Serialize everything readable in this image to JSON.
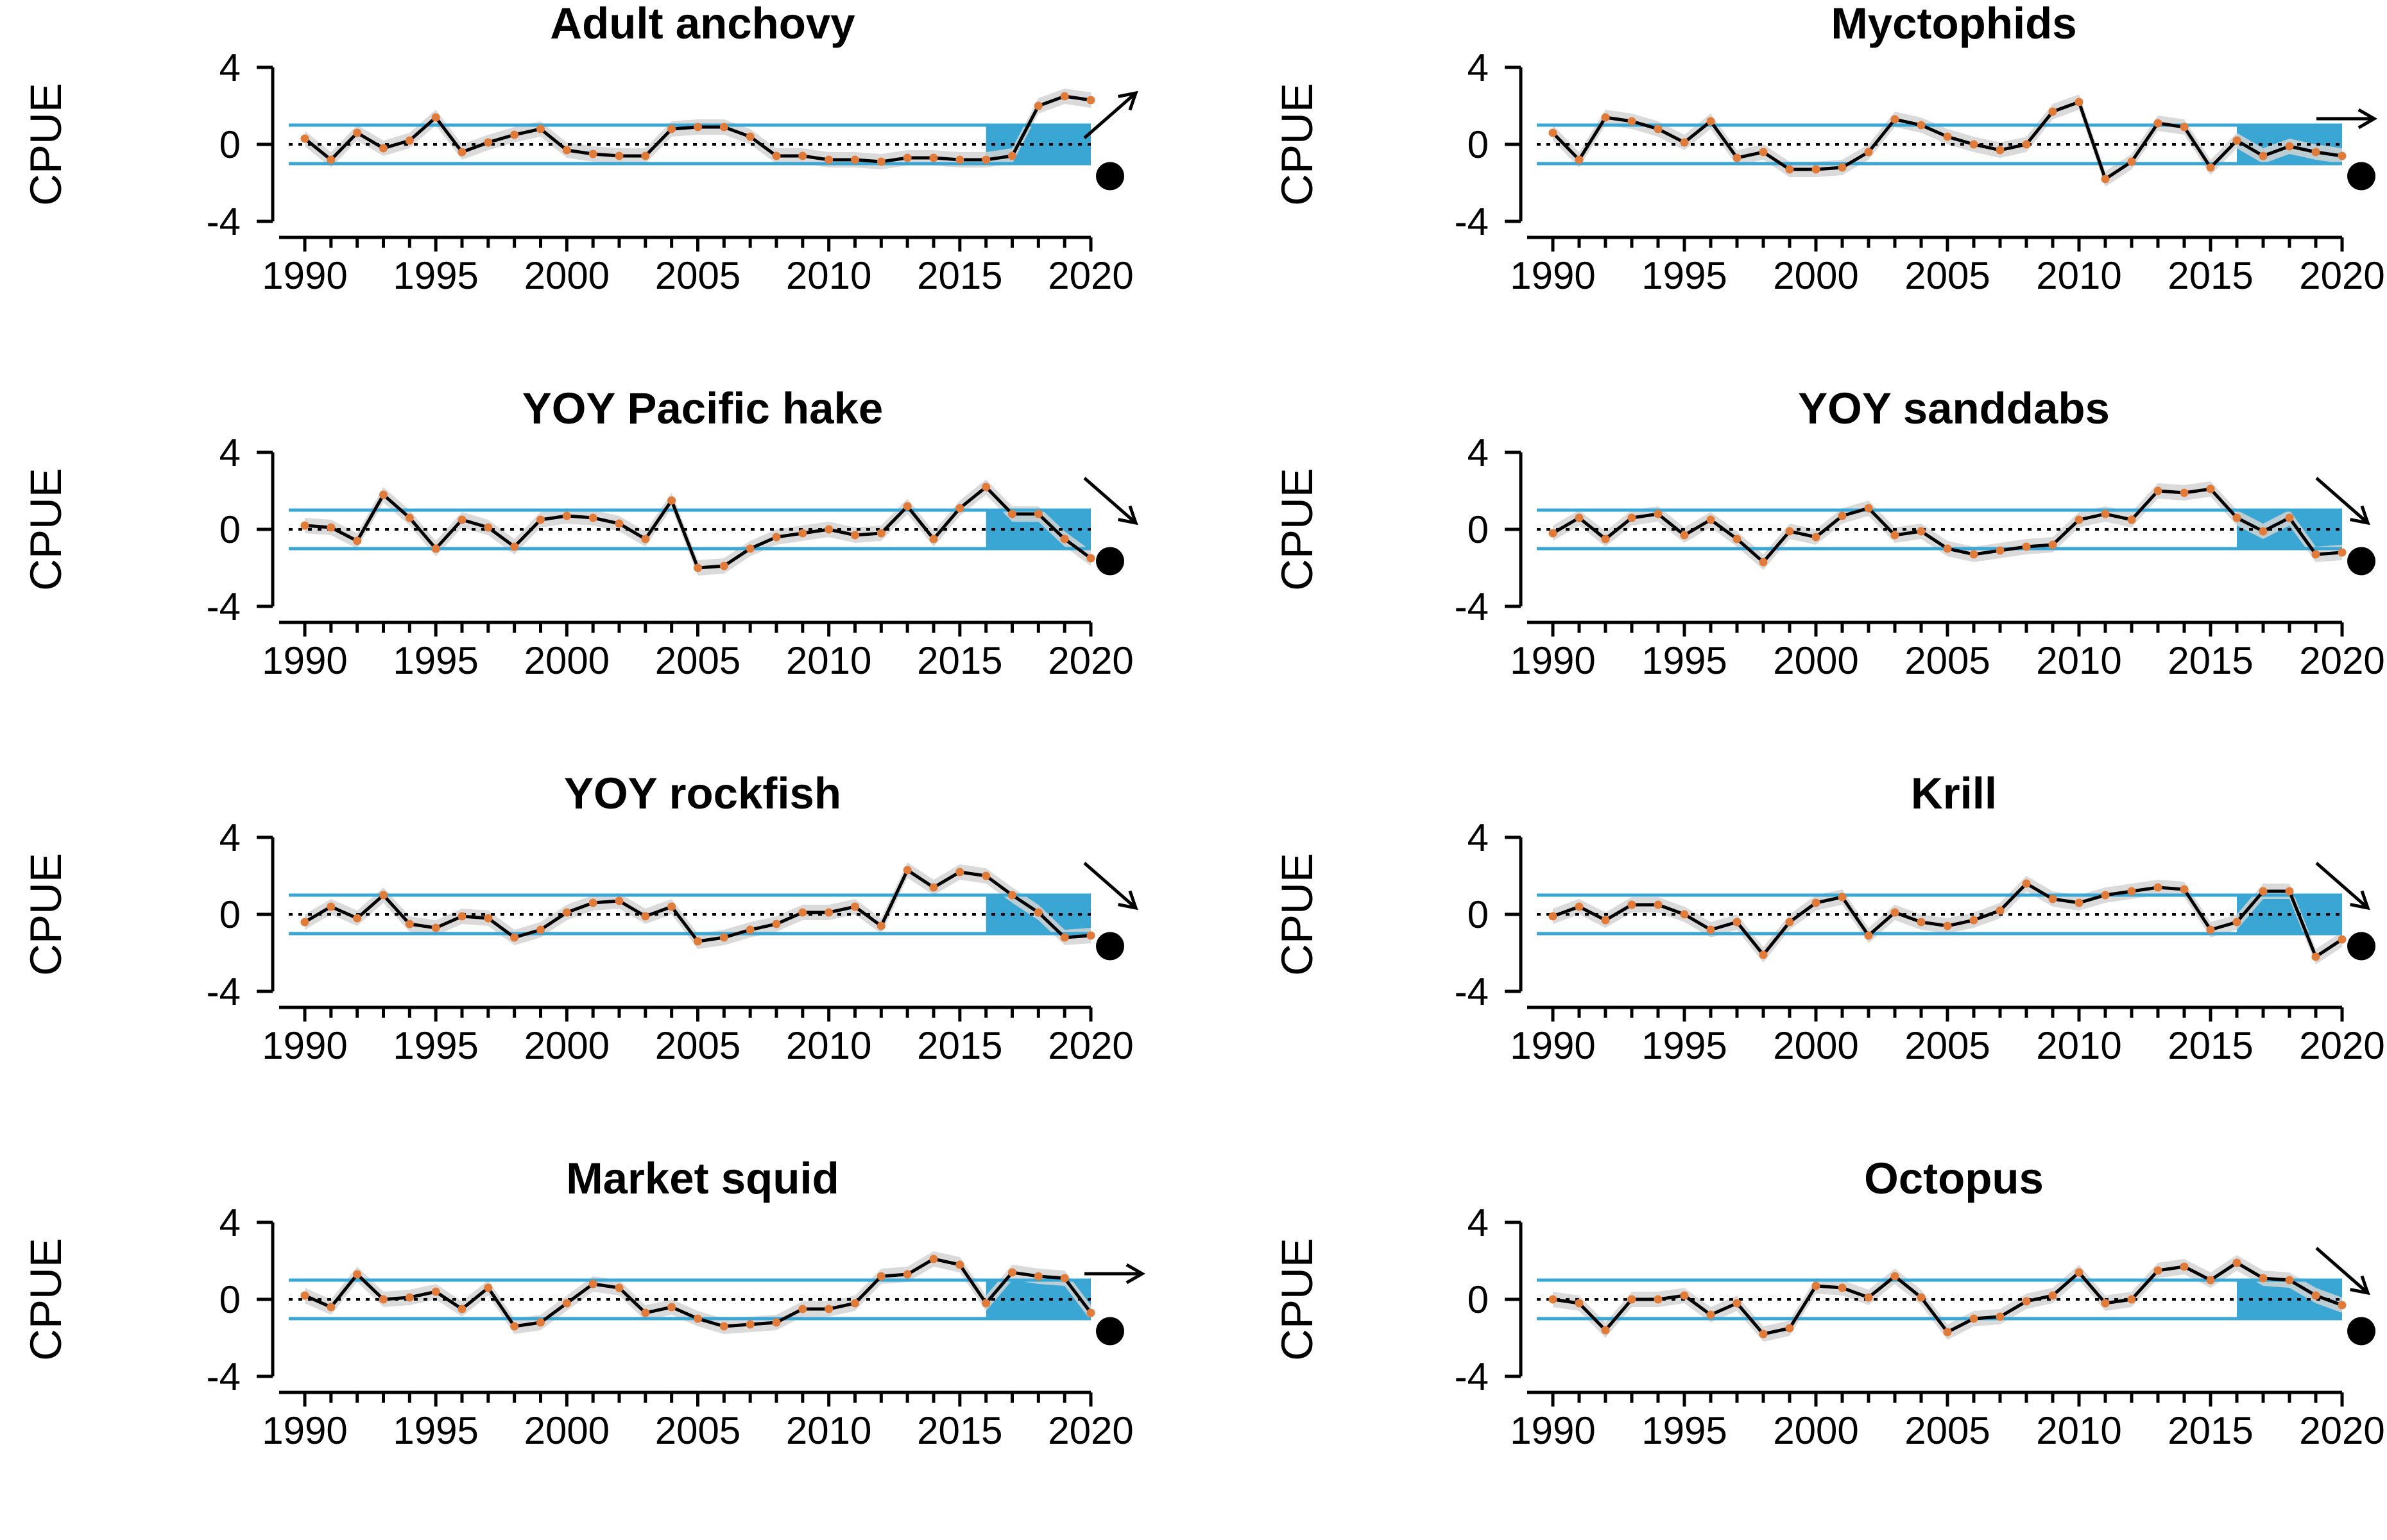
{
  "figure": {
    "y_axis_label": "CPUE",
    "colors": {
      "line": "#000000",
      "point": "#E07B39",
      "band": "#D3D3D3",
      "sd_line": "#3AA6D4",
      "recent_fill": "#3AA6D4",
      "mean_line": "#000000"
    }
  },
  "chart_data": [
    {
      "type": "line",
      "title": "Adult anchovy",
      "ylabel": "CPUE",
      "xlim": [
        1990,
        2020
      ],
      "ylim": [
        -4,
        4
      ],
      "y_ticks": [
        "4",
        "0",
        "-4"
      ],
      "x_ticks": [
        "1990",
        "1995",
        "2000",
        "2005",
        "2010",
        "2015",
        "2020"
      ],
      "recent_window": [
        2016,
        2020
      ],
      "sd_lines": [
        1,
        -1
      ],
      "trend": "increasing",
      "status": "within",
      "x": [
        1990,
        1991,
        1992,
        1993,
        1994,
        1995,
        1996,
        1997,
        1998,
        1999,
        2000,
        2001,
        2002,
        2003,
        2004,
        2005,
        2006,
        2007,
        2008,
        2009,
        2010,
        2011,
        2012,
        2013,
        2014,
        2015,
        2016,
        2017,
        2018,
        2019,
        2020
      ],
      "values": [
        0.3,
        -0.8,
        0.6,
        -0.2,
        0.2,
        1.4,
        -0.4,
        0.1,
        0.5,
        0.8,
        -0.3,
        -0.5,
        -0.6,
        -0.6,
        0.8,
        0.9,
        0.9,
        0.4,
        -0.6,
        -0.6,
        -0.8,
        -0.8,
        -0.9,
        -0.7,
        -0.7,
        -0.8,
        -0.8,
        -0.6,
        2.0,
        2.5,
        2.3
      ]
    },
    {
      "type": "line",
      "title": "Myctophids",
      "ylabel": "CPUE",
      "xlim": [
        1990,
        2020
      ],
      "ylim": [
        -4,
        4
      ],
      "y_ticks": [
        "4",
        "0",
        "-4"
      ],
      "x_ticks": [
        "1990",
        "1995",
        "2000",
        "2005",
        "2010",
        "2015",
        "2020"
      ],
      "recent_window": [
        2016,
        2020
      ],
      "sd_lines": [
        1,
        -1
      ],
      "trend": "stable",
      "status": "within",
      "x": [
        1990,
        1991,
        1992,
        1993,
        1994,
        1995,
        1996,
        1997,
        1998,
        1999,
        2000,
        2001,
        2002,
        2003,
        2004,
        2005,
        2006,
        2007,
        2008,
        2009,
        2010,
        2011,
        2012,
        2013,
        2014,
        2015,
        2016,
        2017,
        2018,
        2019,
        2020
      ],
      "values": [
        0.6,
        -0.8,
        1.4,
        1.2,
        0.8,
        0.1,
        1.2,
        -0.7,
        -0.4,
        -1.3,
        -1.3,
        -1.2,
        -0.4,
        1.3,
        1.0,
        0.4,
        0.0,
        -0.3,
        0.0,
        1.7,
        2.2,
        -1.8,
        -0.9,
        1.1,
        0.9,
        -1.2,
        0.2,
        -0.6,
        -0.1,
        -0.4,
        -0.6
      ]
    },
    {
      "type": "line",
      "title": "YOY Pacific hake",
      "ylabel": "CPUE",
      "xlim": [
        1990,
        2020
      ],
      "ylim": [
        -4,
        4
      ],
      "y_ticks": [
        "4",
        "0",
        "-4"
      ],
      "x_ticks": [
        "1990",
        "1995",
        "2000",
        "2005",
        "2010",
        "2015",
        "2020"
      ],
      "recent_window": [
        2016,
        2020
      ],
      "sd_lines": [
        1,
        -1
      ],
      "trend": "decreasing",
      "status": "within",
      "x": [
        1990,
        1991,
        1992,
        1993,
        1994,
        1995,
        1996,
        1997,
        1998,
        1999,
        2000,
        2001,
        2002,
        2003,
        2004,
        2005,
        2006,
        2007,
        2008,
        2009,
        2010,
        2011,
        2012,
        2013,
        2014,
        2015,
        2016,
        2017,
        2018,
        2019,
        2020
      ],
      "values": [
        0.2,
        0.1,
        -0.6,
        1.8,
        0.6,
        -1.0,
        0.5,
        0.1,
        -0.9,
        0.5,
        0.7,
        0.6,
        0.3,
        -0.5,
        1.5,
        -2.0,
        -1.9,
        -1.0,
        -0.4,
        -0.2,
        0.0,
        -0.3,
        -0.2,
        1.2,
        -0.5,
        1.1,
        2.2,
        0.8,
        0.8,
        -0.5,
        -1.5
      ]
    },
    {
      "type": "line",
      "title": "YOY sanddabs",
      "ylabel": "CPUE",
      "xlim": [
        1990,
        2020
      ],
      "ylim": [
        -4,
        4
      ],
      "y_ticks": [
        "4",
        "0",
        "-4"
      ],
      "x_ticks": [
        "1990",
        "1995",
        "2000",
        "2005",
        "2010",
        "2015",
        "2020"
      ],
      "recent_window": [
        2016,
        2020
      ],
      "sd_lines": [
        1,
        -1
      ],
      "trend": "decreasing",
      "status": "within",
      "x": [
        1990,
        1991,
        1992,
        1993,
        1994,
        1995,
        1996,
        1997,
        1998,
        1999,
        2000,
        2001,
        2002,
        2003,
        2004,
        2005,
        2006,
        2007,
        2008,
        2009,
        2010,
        2011,
        2012,
        2013,
        2014,
        2015,
        2016,
        2017,
        2018,
        2019,
        2020
      ],
      "values": [
        -0.2,
        0.6,
        -0.5,
        0.6,
        0.8,
        -0.3,
        0.5,
        -0.5,
        -1.7,
        -0.1,
        -0.4,
        0.7,
        1.1,
        -0.3,
        -0.1,
        -1.0,
        -1.3,
        -1.1,
        -0.9,
        -0.8,
        0.5,
        0.8,
        0.5,
        2.0,
        1.9,
        2.1,
        0.6,
        -0.1,
        0.6,
        -1.3,
        -1.2
      ]
    },
    {
      "type": "line",
      "title": "YOY rockfish",
      "ylabel": "CPUE",
      "xlim": [
        1990,
        2020
      ],
      "ylim": [
        -4,
        4
      ],
      "y_ticks": [
        "4",
        "0",
        "-4"
      ],
      "x_ticks": [
        "1990",
        "1995",
        "2000",
        "2005",
        "2010",
        "2015",
        "2020"
      ],
      "recent_window": [
        2016,
        2020
      ],
      "sd_lines": [
        1,
        -1
      ],
      "trend": "decreasing",
      "status": "within",
      "x": [
        1990,
        1991,
        1992,
        1993,
        1994,
        1995,
        1996,
        1997,
        1998,
        1999,
        2000,
        2001,
        2002,
        2003,
        2004,
        2005,
        2006,
        2007,
        2008,
        2009,
        2010,
        2011,
        2012,
        2013,
        2014,
        2015,
        2016,
        2017,
        2018,
        2019,
        2020
      ],
      "values": [
        -0.4,
        0.4,
        -0.2,
        1.0,
        -0.5,
        -0.7,
        -0.1,
        -0.2,
        -1.2,
        -0.8,
        0.1,
        0.6,
        0.7,
        -0.1,
        0.4,
        -1.4,
        -1.2,
        -0.8,
        -0.5,
        0.1,
        0.1,
        0.4,
        -0.6,
        2.3,
        1.4,
        2.2,
        2.0,
        1.0,
        0.1,
        -1.2,
        -1.1
      ]
    },
    {
      "type": "line",
      "title": "Krill",
      "ylabel": "CPUE",
      "xlim": [
        1990,
        2020
      ],
      "ylim": [
        -4,
        4
      ],
      "y_ticks": [
        "4",
        "0",
        "-4"
      ],
      "x_ticks": [
        "1990",
        "1995",
        "2000",
        "2005",
        "2010",
        "2015",
        "2020"
      ],
      "recent_window": [
        2016,
        2020
      ],
      "sd_lines": [
        1,
        -1
      ],
      "trend": "decreasing",
      "status": "within",
      "x": [
        1990,
        1991,
        1992,
        1993,
        1994,
        1995,
        1996,
        1997,
        1998,
        1999,
        2000,
        2001,
        2002,
        2003,
        2004,
        2005,
        2006,
        2007,
        2008,
        2009,
        2010,
        2011,
        2012,
        2013,
        2014,
        2015,
        2016,
        2017,
        2018,
        2019,
        2020
      ],
      "values": [
        -0.1,
        0.4,
        -0.3,
        0.5,
        0.5,
        0.0,
        -0.8,
        -0.4,
        -2.1,
        -0.4,
        0.6,
        0.9,
        -1.1,
        0.1,
        -0.4,
        -0.6,
        -0.3,
        0.2,
        1.6,
        0.8,
        0.6,
        1.0,
        1.2,
        1.4,
        1.3,
        -0.8,
        -0.4,
        1.2,
        1.2,
        -2.2,
        -1.3
      ]
    },
    {
      "type": "line",
      "title": "Market squid",
      "ylabel": "CPUE",
      "xlim": [
        1990,
        2020
      ],
      "ylim": [
        -4,
        4
      ],
      "y_ticks": [
        "4",
        "0",
        "-4"
      ],
      "x_ticks": [
        "1990",
        "1995",
        "2000",
        "2005",
        "2010",
        "2015",
        "2020"
      ],
      "recent_window": [
        2016,
        2020
      ],
      "sd_lines": [
        1,
        -1
      ],
      "trend": "stable",
      "status": "within",
      "x": [
        1990,
        1991,
        1992,
        1993,
        1994,
        1995,
        1996,
        1997,
        1998,
        1999,
        2000,
        2001,
        2002,
        2003,
        2004,
        2005,
        2006,
        2007,
        2008,
        2009,
        2010,
        2011,
        2012,
        2013,
        2014,
        2015,
        2016,
        2017,
        2018,
        2019,
        2020
      ],
      "values": [
        0.2,
        -0.4,
        1.3,
        0.0,
        0.1,
        0.4,
        -0.5,
        0.6,
        -1.4,
        -1.2,
        -0.2,
        0.8,
        0.6,
        -0.7,
        -0.4,
        -1.0,
        -1.4,
        -1.3,
        -1.2,
        -0.5,
        -0.5,
        -0.2,
        1.2,
        1.3,
        2.1,
        1.8,
        -0.2,
        1.4,
        1.2,
        1.1,
        -0.7
      ]
    },
    {
      "type": "line",
      "title": "Octopus",
      "ylabel": "CPUE",
      "xlim": [
        1990,
        2020
      ],
      "ylim": [
        -4,
        4
      ],
      "y_ticks": [
        "4",
        "0",
        "-4"
      ],
      "x_ticks": [
        "1990",
        "1995",
        "2000",
        "2005",
        "2010",
        "2015",
        "2020"
      ],
      "recent_window": [
        2016,
        2020
      ],
      "sd_lines": [
        1,
        -1
      ],
      "trend": "decreasing",
      "status": "within",
      "x": [
        1990,
        1991,
        1992,
        1993,
        1994,
        1995,
        1996,
        1997,
        1998,
        1999,
        2000,
        2001,
        2002,
        2003,
        2004,
        2005,
        2006,
        2007,
        2008,
        2009,
        2010,
        2011,
        2012,
        2013,
        2014,
        2015,
        2016,
        2017,
        2018,
        2019,
        2020
      ],
      "values": [
        0.0,
        -0.2,
        -1.6,
        0.0,
        0.0,
        0.2,
        -0.8,
        -0.2,
        -1.8,
        -1.5,
        0.7,
        0.6,
        0.1,
        1.2,
        0.1,
        -1.7,
        -1.0,
        -0.9,
        -0.1,
        0.2,
        1.4,
        -0.2,
        0.0,
        1.5,
        1.7,
        1.0,
        1.9,
        1.1,
        1.0,
        0.2,
        -0.3
      ]
    }
  ]
}
